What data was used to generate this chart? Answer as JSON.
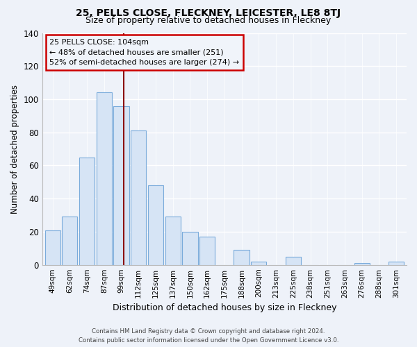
{
  "title": "25, PELLS CLOSE, FLECKNEY, LEICESTER, LE8 8TJ",
  "subtitle": "Size of property relative to detached houses in Fleckney",
  "xlabel": "Distribution of detached houses by size in Fleckney",
  "ylabel": "Number of detached properties",
  "categories": [
    "49sqm",
    "62sqm",
    "74sqm",
    "87sqm",
    "99sqm",
    "112sqm",
    "125sqm",
    "137sqm",
    "150sqm",
    "162sqm",
    "175sqm",
    "188sqm",
    "200sqm",
    "213sqm",
    "225sqm",
    "238sqm",
    "251sqm",
    "263sqm",
    "276sqm",
    "288sqm",
    "301sqm"
  ],
  "values": [
    21,
    29,
    65,
    104,
    96,
    81,
    48,
    29,
    20,
    17,
    0,
    9,
    2,
    0,
    5,
    0,
    0,
    0,
    1,
    0,
    2
  ],
  "bar_facecolor": "#d6e4f5",
  "bar_edgecolor": "#7aabdb",
  "vline_color": "#8b0000",
  "vline_x": 4.15,
  "annotation_text": "25 PELLS CLOSE: 104sqm\n← 48% of detached houses are smaller (251)\n52% of semi-detached houses are larger (274) →",
  "annotation_box_edgecolor": "#cc0000",
  "annotation_box_facecolor": "#f0f4fa",
  "ylim": [
    0,
    140
  ],
  "yticks": [
    0,
    20,
    40,
    60,
    80,
    100,
    120,
    140
  ],
  "footer_line1": "Contains HM Land Registry data © Crown copyright and database right 2024.",
  "footer_line2": "Contains public sector information licensed under the Open Government Licence v3.0.",
  "background_color": "#eef2f9",
  "plot_bg_color": "#eef2f9",
  "figsize": [
    6.0,
    5.0
  ],
  "dpi": 100
}
